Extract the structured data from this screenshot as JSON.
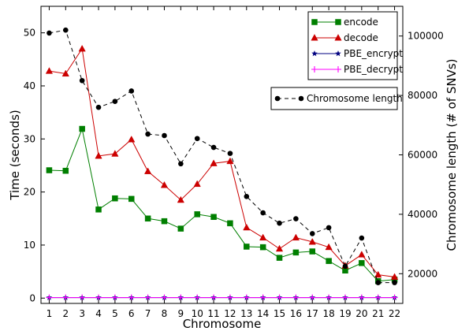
{
  "chart_data": {
    "type": "line",
    "x": [
      1,
      2,
      3,
      4,
      5,
      6,
      7,
      8,
      9,
      10,
      11,
      12,
      13,
      14,
      15,
      16,
      17,
      18,
      19,
      20,
      21,
      22
    ],
    "xlabel": "Chromosome",
    "ylabel": "Time (seconds)",
    "y2label": "Chromosome length (# of SNVs)",
    "xlim": [
      0.5,
      22.5
    ],
    "ylim": [
      -1,
      55
    ],
    "y2lim": [
      10000,
      110000
    ],
    "xticks": [
      "1",
      "2",
      "3",
      "4",
      "5",
      "6",
      "7",
      "8",
      "9",
      "10",
      "11",
      "12",
      "13",
      "14",
      "15",
      "16",
      "17",
      "18",
      "19",
      "20",
      "21",
      "22"
    ],
    "yticks": [
      "0",
      "10",
      "20",
      "30",
      "40",
      "50"
    ],
    "y2ticks": [
      "20000",
      "40000",
      "60000",
      "80000",
      "100000"
    ],
    "grid": false,
    "series": [
      {
        "name": "encode",
        "axis": "left",
        "color": "#007f00",
        "marker": "square",
        "values": [
          24.1,
          24.0,
          31.9,
          16.7,
          18.8,
          18.7,
          15.0,
          14.5,
          13.1,
          15.8,
          15.3,
          14.1,
          9.7,
          9.6,
          7.6,
          8.6,
          8.8,
          7.0,
          5.2,
          6.6,
          3.2,
          3.5
        ]
      },
      {
        "name": "decode",
        "axis": "left",
        "color": "#cc0000",
        "marker": "triangle",
        "values": [
          42.8,
          42.3,
          47.0,
          26.8,
          27.2,
          29.9,
          23.9,
          21.3,
          18.5,
          21.5,
          25.4,
          25.8,
          13.3,
          11.4,
          9.3,
          11.4,
          10.6,
          9.6,
          6.1,
          8.2,
          4.4,
          4.0
        ]
      },
      {
        "name": "PBE_encrypt",
        "axis": "left",
        "color": "#000080",
        "marker": "star",
        "values": [
          0.1,
          0.1,
          0.1,
          0.1,
          0.1,
          0.1,
          0.1,
          0.1,
          0.1,
          0.1,
          0.1,
          0.1,
          0.1,
          0.1,
          0.1,
          0.1,
          0.1,
          0.1,
          0.1,
          0.1,
          0.1,
          0.1
        ]
      },
      {
        "name": "PBE_decrypt",
        "axis": "left",
        "color": "#ff00ff",
        "marker": "plus",
        "values": [
          0.1,
          0.1,
          0.1,
          0.1,
          0.1,
          0.1,
          0.1,
          0.1,
          0.1,
          0.1,
          0.1,
          0.1,
          0.1,
          0.1,
          0.1,
          0.1,
          0.1,
          0.1,
          0.1,
          0.1,
          0.1,
          0.1
        ]
      },
      {
        "name": "Chromosome length",
        "axis": "right",
        "color": "#000000",
        "marker": "circle",
        "dashed": true,
        "values": [
          101000,
          102000,
          85000,
          76000,
          78000,
          81500,
          67000,
          66500,
          57000,
          65500,
          62500,
          60500,
          46000,
          40500,
          37000,
          38500,
          33500,
          35500,
          22500,
          32000,
          17000,
          17000
        ]
      }
    ],
    "legends": [
      {
        "placement": "top-right",
        "entries": [
          "encode",
          "decode",
          "PBE_encrypt",
          "PBE_decrypt"
        ]
      },
      {
        "placement": "upper-right",
        "entries": [
          "Chromosome length"
        ]
      }
    ]
  }
}
